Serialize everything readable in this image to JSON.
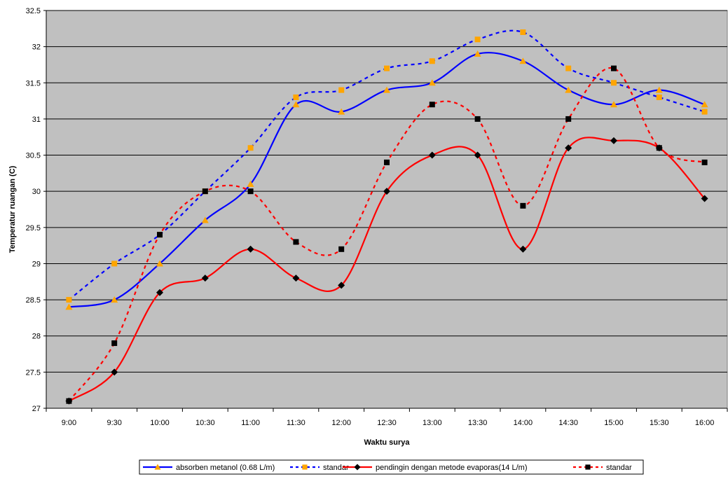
{
  "chart_data": {
    "type": "line",
    "xlabel": "Waktu surya",
    "ylabel": "Temperatur ruangan (C)",
    "categories": [
      "9:00",
      "9:30",
      "10:00",
      "10:30",
      "11:00",
      "11:30",
      "12:00",
      "12:30",
      "13:00",
      "13:30",
      "14:00",
      "14:30",
      "15:00",
      "15:30",
      "16:00"
    ],
    "ylim": [
      27,
      32.5
    ],
    "yticks": [
      27,
      27.5,
      28,
      28.5,
      29,
      29.5,
      30,
      30.5,
      31,
      31.5,
      32,
      32.5
    ],
    "ytick_labels": [
      "27",
      "27.5",
      "28",
      "28.5",
      "29",
      "29.5",
      "30",
      "30.5",
      "31",
      "31.5",
      "32",
      "32.5"
    ],
    "grid": "horizontal",
    "plot_background": "#c0c0c0",
    "legend_position": "bottom",
    "series": [
      {
        "name": "absorben metanol (0.68 L/m)",
        "color": "#0000ff",
        "line_style": "solid",
        "marker": "triangle",
        "marker_color": "#ffa500",
        "values": [
          28.4,
          28.5,
          29.0,
          29.6,
          30.1,
          31.2,
          31.1,
          31.4,
          31.5,
          31.9,
          31.8,
          31.4,
          31.2,
          31.4,
          31.2
        ]
      },
      {
        "name": "standar",
        "color": "#0000ff",
        "line_style": "dashed",
        "marker": "square",
        "marker_color": "#ffa500",
        "values": [
          28.5,
          29.0,
          29.4,
          30.0,
          30.6,
          31.3,
          31.4,
          31.7,
          31.8,
          32.1,
          32.2,
          31.7,
          31.5,
          31.3,
          31.1
        ]
      },
      {
        "name": "pendingin dengan metode evaporas(14 L/m)",
        "color": "#ff0000",
        "line_style": "solid",
        "marker": "diamond",
        "marker_color": "#000000",
        "values": [
          27.1,
          27.5,
          28.6,
          28.8,
          29.2,
          28.8,
          28.7,
          30.0,
          30.5,
          30.5,
          29.2,
          30.6,
          30.7,
          30.6,
          29.9
        ]
      },
      {
        "name": "standar",
        "color": "#ff0000",
        "line_style": "dashed",
        "marker": "square",
        "marker_color": "#000000",
        "values": [
          27.1,
          27.9,
          29.4,
          30.0,
          30.0,
          29.3,
          29.2,
          30.4,
          31.2,
          31.0,
          29.8,
          31.0,
          31.7,
          30.6,
          30.4
        ]
      }
    ]
  }
}
